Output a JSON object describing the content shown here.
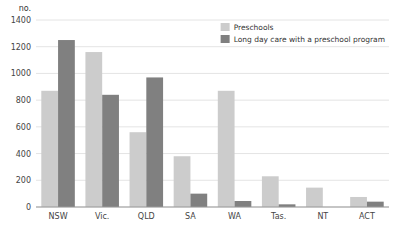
{
  "chart_data": {
    "type": "bar",
    "y_label": "no.",
    "categories": [
      "NSW",
      "Vic.",
      "QLD",
      "SA",
      "WA",
      "Tas.",
      "NT",
      "ACT"
    ],
    "series": [
      {
        "name": "Preschools",
        "color": "#cccccc",
        "values": [
          870,
          1160,
          560,
          380,
          870,
          230,
          145,
          75
        ]
      },
      {
        "name": "Long day care with a preschool program",
        "color": "#808080",
        "values": [
          1250,
          840,
          970,
          100,
          45,
          20,
          0,
          40
        ]
      }
    ],
    "ylim": [
      0,
      1400
    ],
    "yticks": [
      0,
      200,
      400,
      600,
      800,
      1000,
      1200,
      1400
    ],
    "grid": true,
    "legend": "upper right"
  }
}
